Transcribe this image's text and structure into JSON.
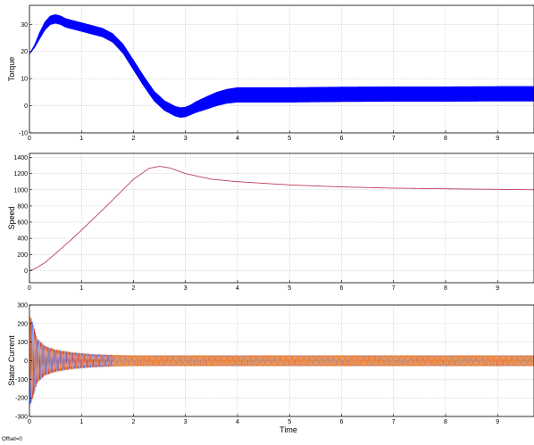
{
  "chart_data": [
    {
      "type": "line",
      "ylabel": "Torque",
      "xlabel": "",
      "xlim": [
        0,
        9.7
      ],
      "ylim": [
        -10,
        37
      ],
      "xticks": [
        0,
        1,
        2,
        3,
        4,
        5,
        6,
        7,
        8,
        9
      ],
      "yticks": [
        -10,
        0,
        10,
        20,
        30
      ],
      "grid": true,
      "series": [
        {
          "color": "#0000ff",
          "style": "high-frequency ripple band",
          "x": [
            0,
            0.1,
            0.2,
            0.3,
            0.4,
            0.5,
            0.6,
            0.7,
            0.8,
            1.0,
            1.2,
            1.4,
            1.6,
            1.8,
            2.0,
            2.2,
            2.4,
            2.6,
            2.8,
            2.9,
            3.0,
            3.1,
            3.2,
            3.4,
            3.6,
            3.8,
            4.0,
            5.0,
            6.0,
            7.0,
            8.0,
            9.0,
            9.7
          ],
          "y": [
            19,
            22,
            26,
            29.5,
            31.5,
            32,
            31.5,
            30.5,
            30,
            29,
            28,
            27,
            25,
            21,
            15,
            9,
            3.5,
            0,
            -2,
            -2.5,
            -2.3,
            -1.5,
            -0.5,
            1,
            2.5,
            3.5,
            4,
            4,
            4.2,
            4.3,
            4.3,
            4.4,
            4.4
          ],
          "ripple": [
            0,
            0.5,
            1.2,
            1.5,
            1.6,
            1.6,
            1.6,
            1.6,
            1.6,
            1.6,
            1.6,
            1.6,
            1.6,
            1.7,
            1.8,
            1.8,
            1.8,
            1.8,
            1.8,
            1.8,
            1.8,
            1.8,
            2.0,
            2.3,
            2.5,
            2.6,
            2.7,
            2.7,
            2.7,
            2.7,
            2.7,
            2.7,
            2.7
          ]
        }
      ]
    },
    {
      "type": "line",
      "ylabel": "Speed",
      "xlabel": "",
      "xlim": [
        0,
        9.7
      ],
      "ylim": [
        -150,
        1450
      ],
      "xticks": [
        0,
        1,
        2,
        3,
        4,
        5,
        6,
        7,
        8,
        9
      ],
      "yticks": [
        0,
        200,
        400,
        600,
        800,
        1000,
        1200,
        1400
      ],
      "grid": true,
      "series": [
        {
          "color": "#c0405a",
          "x": [
            0,
            0.1,
            0.3,
            0.5,
            0.8,
            1.0,
            1.5,
            2.0,
            2.3,
            2.5,
            2.7,
            3.0,
            3.5,
            4.0,
            5.0,
            6.0,
            7.0,
            8.0,
            9.0,
            9.7
          ],
          "y": [
            0,
            20,
            100,
            210,
            380,
            500,
            810,
            1130,
            1265,
            1290,
            1270,
            1200,
            1130,
            1100,
            1060,
            1035,
            1020,
            1012,
            1005,
            1000
          ]
        }
      ]
    },
    {
      "type": "line",
      "ylabel": "Stator Current",
      "xlabel": "Time",
      "xlim": [
        0,
        9.7
      ],
      "ylim": [
        -300,
        300
      ],
      "xticks": [
        0,
        1,
        2,
        3,
        4,
        5,
        6,
        7,
        8,
        9
      ],
      "yticks": [
        -300,
        -200,
        -100,
        0,
        100,
        200,
        300
      ],
      "grid": true,
      "offset_text": "Offset=0",
      "series": [
        {
          "color": "#ff9933",
          "phase": 0
        },
        {
          "color": "#3366ff",
          "phase": 2.094
        },
        {
          "color": "#cc3333",
          "phase": 4.189
        }
      ],
      "envelope": {
        "x": [
          0,
          0.05,
          0.15,
          0.3,
          0.5,
          0.8,
          1.2,
          1.6,
          2.0,
          3.0,
          4.0,
          9.7
        ],
        "y": [
          250,
          220,
          120,
          80,
          60,
          45,
          35,
          30,
          28,
          28,
          28,
          28
        ]
      }
    }
  ]
}
